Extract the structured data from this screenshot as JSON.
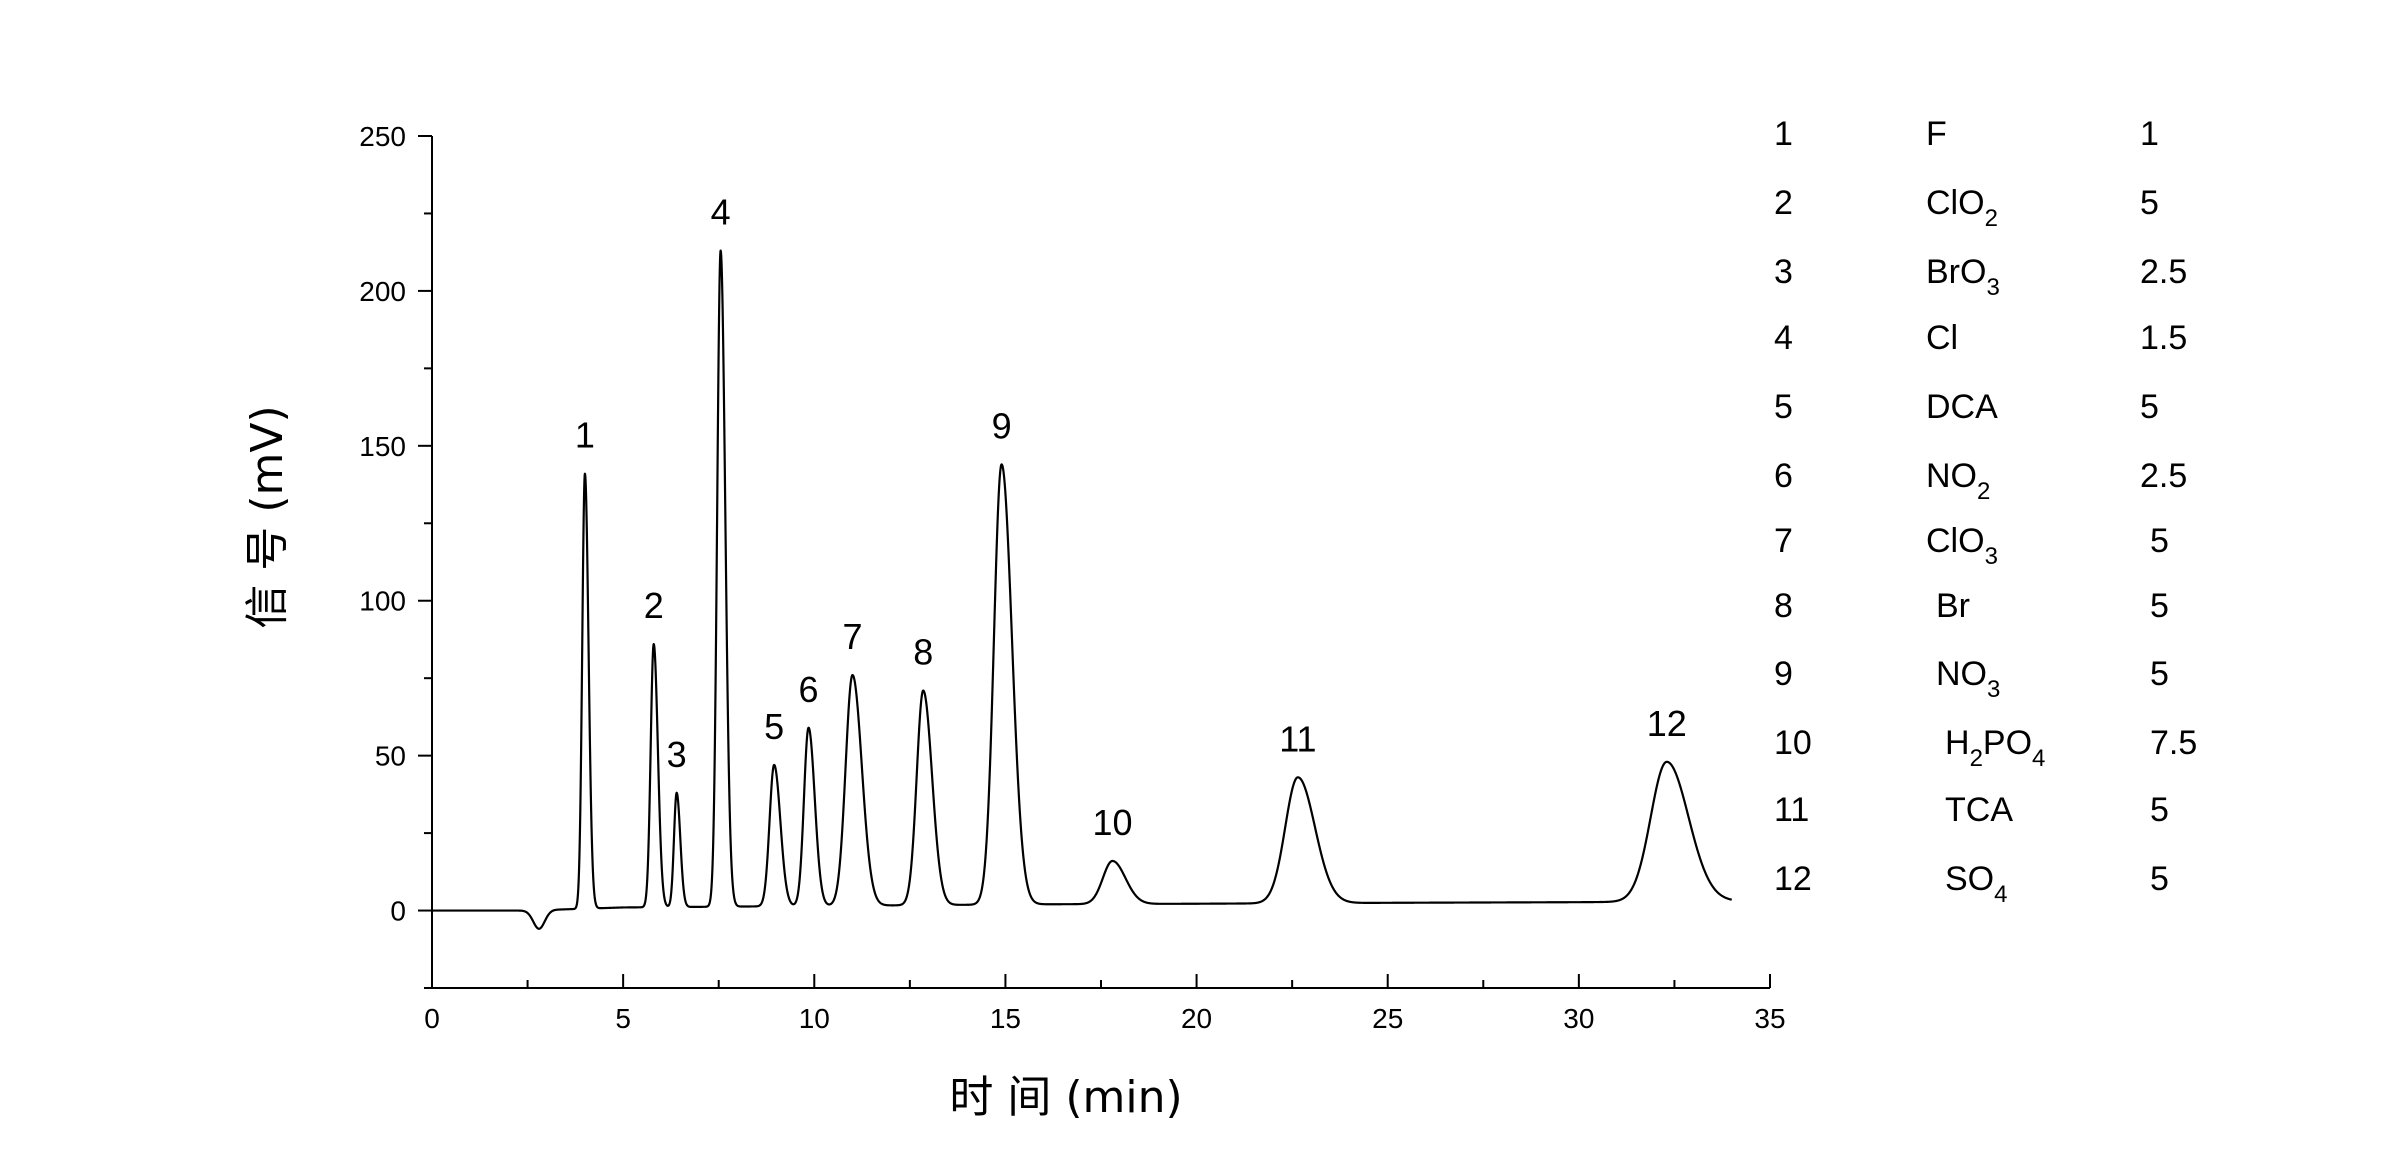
{
  "chart_data": {
    "type": "line",
    "xlabel": "时 间 (min)",
    "ylabel": "信 号 (mV)",
    "xlim": [
      0,
      35
    ],
    "ylim": [
      -25,
      250
    ],
    "x_ticks": [
      "0",
      "5",
      "10",
      "15",
      "20",
      "25",
      "30",
      "35"
    ],
    "y_ticks": [
      "0",
      "50",
      "100",
      "150",
      "200",
      "250"
    ],
    "grid": false,
    "series": [
      {
        "baseline": [
          [
            0,
            0
          ],
          [
            2.5,
            0
          ],
          [
            5,
            1
          ],
          [
            15.5,
            2
          ],
          [
            20,
            2.2
          ],
          [
            25,
            2.5
          ],
          [
            30,
            2.7
          ],
          [
            34,
            3
          ]
        ],
        "dip": {
          "x": 2.8,
          "depth": -6,
          "width": 0.15
        },
        "peaks": [
          {
            "label": "1",
            "x": 4.0,
            "height": 141,
            "width": 0.07
          },
          {
            "label": "2",
            "x": 5.8,
            "height": 86,
            "width": 0.08
          },
          {
            "label": "3",
            "x": 6.4,
            "height": 38,
            "width": 0.07
          },
          {
            "label": "4",
            "x": 7.55,
            "height": 213,
            "width": 0.09
          },
          {
            "label": "5",
            "x": 8.95,
            "height": 47,
            "width": 0.12
          },
          {
            "label": "6",
            "x": 9.85,
            "height": 59,
            "width": 0.12
          },
          {
            "label": "7",
            "x": 11.0,
            "height": 76,
            "width": 0.18
          },
          {
            "label": "8",
            "x": 12.85,
            "height": 71,
            "width": 0.17
          },
          {
            "label": "9",
            "x": 14.9,
            "height": 144,
            "width": 0.2
          },
          {
            "label": "10",
            "x": 17.8,
            "height": 16,
            "width": 0.25
          },
          {
            "label": "11",
            "x": 22.65,
            "height": 43,
            "width": 0.33
          },
          {
            "label": "12",
            "x": 32.3,
            "height": 48,
            "width": 0.42
          }
        ]
      }
    ],
    "legend": {
      "placement": "right",
      "rows": [
        {
          "no": "1",
          "name": "F",
          "sub": "",
          "name_rest": "",
          "name_sub2": "",
          "value": "1"
        },
        {
          "no": "2",
          "name": "ClO",
          "sub": "2",
          "name_rest": "",
          "name_sub2": "",
          "value": "5"
        },
        {
          "no": "3",
          "name": "BrO",
          "sub": "3",
          "name_rest": "",
          "name_sub2": "",
          "value": "2.5"
        },
        {
          "no": "4",
          "name": "Cl",
          "sub": "",
          "name_rest": "",
          "name_sub2": "",
          "value": "1.5"
        },
        {
          "no": "5",
          "name": "DCA",
          "sub": "",
          "name_rest": "",
          "name_sub2": "",
          "value": "5"
        },
        {
          "no": "6",
          "name": "NO",
          "sub": "2",
          "name_rest": "",
          "name_sub2": "",
          "value": "2.5"
        },
        {
          "no": "7",
          "name": "ClO",
          "sub": "3",
          "name_rest": "",
          "name_sub2": "",
          "value": "5"
        },
        {
          "no": "8",
          "name": "Br",
          "sub": "",
          "name_rest": "",
          "name_sub2": "",
          "value": "5"
        },
        {
          "no": "9",
          "name": "NO",
          "sub": "3",
          "name_rest": "",
          "name_sub2": "",
          "value": "5"
        },
        {
          "no": "10",
          "name": "H",
          "sub": "2",
          "name_rest": "PO",
          "name_sub2": "4",
          "value": "7.5"
        },
        {
          "no": "11",
          "name": "TCA",
          "sub": "",
          "name_rest": "",
          "name_sub2": "",
          "value": "5"
        },
        {
          "no": "12",
          "name": "SO",
          "sub": "4",
          "name_rest": "",
          "name_sub2": "",
          "value": "5"
        }
      ]
    }
  }
}
